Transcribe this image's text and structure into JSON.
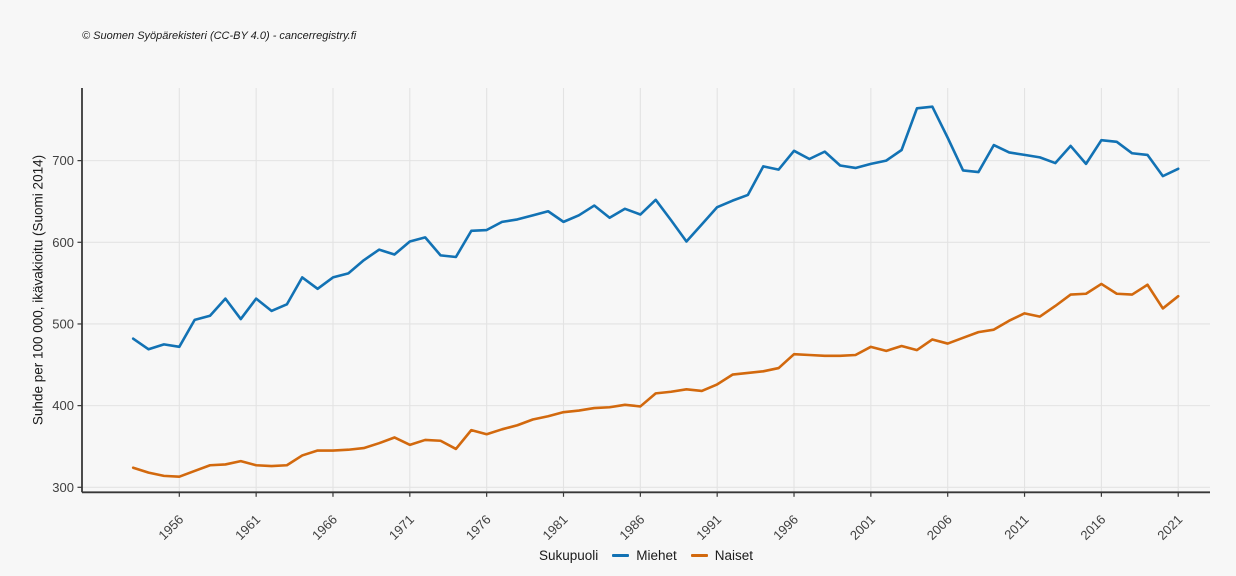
{
  "copyright_note": "© Suomen Syöpärekisteri (CC-BY 4.0) - cancerregistry.fi",
  "legend": {
    "title": "Sukupuoli"
  },
  "chart_data": {
    "type": "line",
    "title": "",
    "xlabel": "",
    "ylabel": "Suhde per 100 000, ikävakioitu (Suomi 2014)",
    "legend_title": "Sukupuoli",
    "legend_position": "bottom",
    "grid": true,
    "x_ticks": [
      1956,
      1961,
      1966,
      1971,
      1976,
      1981,
      1986,
      1991,
      1996,
      2001,
      2006,
      2011,
      2016,
      2021
    ],
    "y_ticks": [
      300,
      400,
      500,
      600,
      700
    ],
    "xlim": [
      1950,
      2023
    ],
    "ylim": [
      300,
      790
    ],
    "x": [
      1953,
      1954,
      1955,
      1956,
      1957,
      1958,
      1959,
      1960,
      1961,
      1962,
      1963,
      1964,
      1965,
      1966,
      1967,
      1968,
      1969,
      1970,
      1971,
      1972,
      1973,
      1974,
      1975,
      1976,
      1977,
      1978,
      1979,
      1980,
      1981,
      1982,
      1983,
      1984,
      1985,
      1986,
      1987,
      1988,
      1989,
      1990,
      1991,
      1992,
      1993,
      1994,
      1995,
      1996,
      1997,
      1998,
      1999,
      2000,
      2001,
      2002,
      2003,
      2004,
      2005,
      2006,
      2007,
      2008,
      2009,
      2010,
      2011,
      2012,
      2013,
      2014,
      2015,
      2016,
      2017,
      2018,
      2019,
      2020,
      2021
    ],
    "series": [
      {
        "name": "Miehet",
        "color": "#1272b4",
        "values": [
          482,
          469,
          475,
          472,
          505,
          510,
          531,
          506,
          531,
          516,
          524,
          557,
          543,
          557,
          562,
          578,
          591,
          585,
          601,
          606,
          584,
          582,
          614,
          615,
          625,
          628,
          633,
          638,
          625,
          633,
          645,
          630,
          641,
          634,
          652,
          627,
          601,
          622,
          643,
          651,
          658,
          693,
          689,
          712,
          702,
          711,
          694,
          691,
          696,
          700,
          713,
          764,
          766,
          728,
          688,
          686,
          719,
          710,
          707,
          704,
          697,
          718,
          696,
          725,
          723,
          709,
          707,
          681,
          690
        ]
      },
      {
        "name": "Naiset",
        "color": "#d2690e",
        "values": [
          324,
          318,
          314,
          313,
          320,
          327,
          328,
          332,
          327,
          326,
          327,
          339,
          345,
          345,
          346,
          348,
          354,
          361,
          352,
          358,
          357,
          347,
          370,
          365,
          371,
          376,
          383,
          387,
          392,
          394,
          397,
          398,
          401,
          399,
          415,
          417,
          420,
          418,
          426,
          438,
          440,
          442,
          446,
          463,
          462,
          461,
          461,
          462,
          472,
          467,
          473,
          468,
          481,
          476,
          483,
          490,
          493,
          504,
          513,
          509,
          522,
          536,
          537,
          549,
          537,
          536,
          548,
          519,
          534
        ]
      }
    ],
    "style": {
      "background": "#f7f7f7",
      "gridline_color": "#e3e3e3",
      "axis_color": "#383838",
      "tick_label_color": "#404040"
    }
  }
}
